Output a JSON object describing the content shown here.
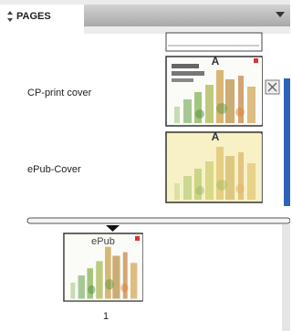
{
  "panel": {
    "tab_label": "PAGES",
    "masters": [
      {
        "name": "CP-print cover",
        "prefix": "A"
      },
      {
        "name": "ePub-Cover",
        "prefix": "A"
      }
    ],
    "pages": [
      {
        "number": "1",
        "thumbnail_text": "ePub"
      }
    ]
  }
}
